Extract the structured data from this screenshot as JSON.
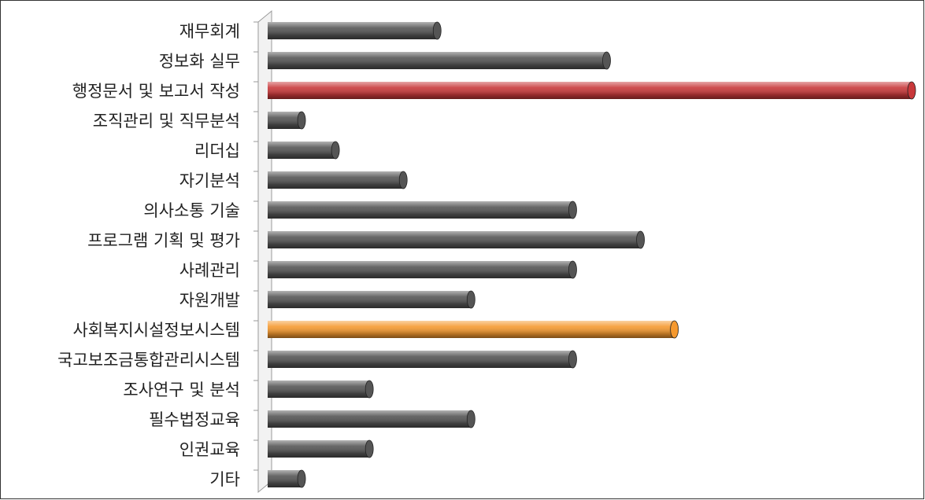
{
  "chart_data": {
    "type": "bar",
    "orientation": "horizontal",
    "categories": [
      "재무회계",
      "정보화 실무",
      "행정문서 및 보고서 작성",
      "조직관리 및 직무분석",
      "리더십",
      "자기분석",
      "의사소통 기술",
      "프로그램 기획 및 평가",
      "사례관리",
      "자원개발",
      "사회복지시설정보시스템",
      "국고보조금통합관리시스템",
      "조사연구 및 분석",
      "필수법정교육",
      "인권교육",
      "기타"
    ],
    "values": [
      5,
      10,
      19,
      1,
      2,
      4,
      9,
      11,
      9,
      6,
      12,
      9,
      3,
      6,
      3,
      1
    ],
    "colors": [
      "#555555",
      "#555555",
      "#c8383a",
      "#555555",
      "#555555",
      "#555555",
      "#555555",
      "#555555",
      "#555555",
      "#555555",
      "#f5992f",
      "#555555",
      "#555555",
      "#555555",
      "#555555",
      "#555555"
    ]
  }
}
